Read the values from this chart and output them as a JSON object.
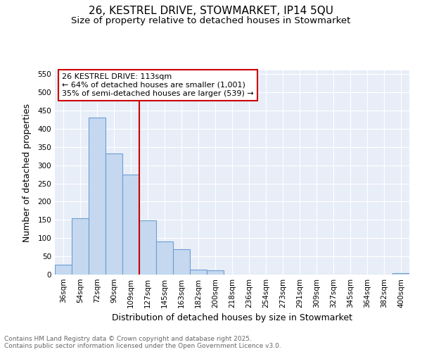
{
  "title": "26, KESTREL DRIVE, STOWMARKET, IP14 5QU",
  "subtitle": "Size of property relative to detached houses in Stowmarket",
  "xlabel": "Distribution of detached houses by size in Stowmarket",
  "ylabel": "Number of detached properties",
  "bar_labels": [
    "36sqm",
    "54sqm",
    "72sqm",
    "90sqm",
    "109sqm",
    "127sqm",
    "145sqm",
    "163sqm",
    "182sqm",
    "200sqm",
    "218sqm",
    "236sqm",
    "254sqm",
    "273sqm",
    "291sqm",
    "309sqm",
    "327sqm",
    "345sqm",
    "364sqm",
    "382sqm",
    "400sqm"
  ],
  "bar_values": [
    28,
    155,
    430,
    333,
    275,
    148,
    90,
    70,
    13,
    12,
    0,
    0,
    0,
    0,
    0,
    0,
    0,
    0,
    0,
    0,
    3
  ],
  "bar_color": "#c5d8f0",
  "bar_edge_color": "#6b9fd4",
  "background_color": "#e8eef8",
  "grid_color": "#ffffff",
  "vline_color": "#cc0000",
  "vline_x_index": 4,
  "annotation_title": "26 KESTREL DRIVE: 113sqm",
  "annotation_line1": "← 64% of detached houses are smaller (1,001)",
  "annotation_line2": "35% of semi-detached houses are larger (539) →",
  "annotation_box_color": "#cc0000",
  "ylim": [
    0,
    560
  ],
  "yticks": [
    0,
    50,
    100,
    150,
    200,
    250,
    300,
    350,
    400,
    450,
    500,
    550
  ],
  "footer_line1": "Contains HM Land Registry data © Crown copyright and database right 2025.",
  "footer_line2": "Contains public sector information licensed under the Open Government Licence v3.0.",
  "title_fontsize": 11,
  "subtitle_fontsize": 9.5,
  "xlabel_fontsize": 9,
  "ylabel_fontsize": 9,
  "tick_fontsize": 7.5,
  "annotation_fontsize": 8,
  "footer_fontsize": 6.5
}
